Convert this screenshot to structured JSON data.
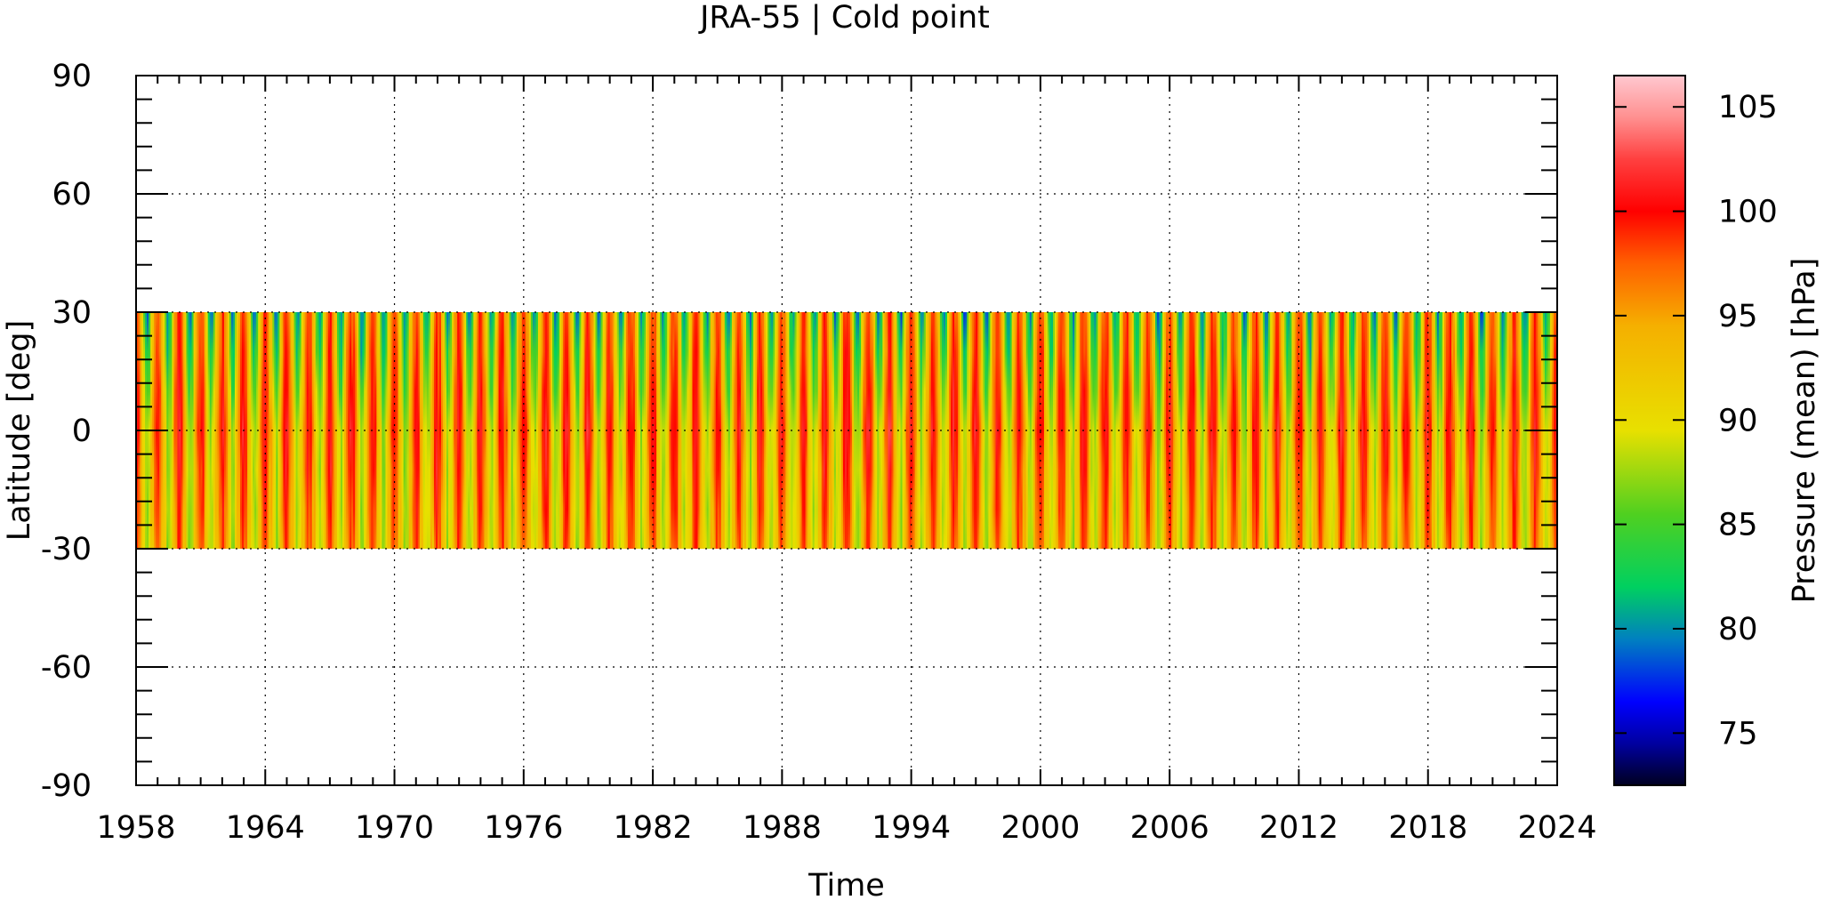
{
  "chart_data": {
    "type": "heatmap",
    "title": "JRA-55 | Cold point",
    "xlabel": "Time",
    "ylabel": "Latitude [deg]",
    "colorbar_label": "Pressure (mean) [hPa]",
    "xlim": [
      1958,
      2024
    ],
    "ylim": [
      -90,
      90
    ],
    "x_ticks": [
      1958,
      1964,
      1970,
      1976,
      1982,
      1988,
      1994,
      2000,
      2006,
      2012,
      2018,
      2024
    ],
    "y_ticks": [
      -90,
      -60,
      -30,
      0,
      30,
      60,
      90
    ],
    "data_lat_range": [
      -30,
      30
    ],
    "colorbar_range": [
      72.5,
      106.5
    ],
    "colorbar_ticks": [
      75,
      80,
      85,
      90,
      95,
      100,
      105
    ],
    "colormap": [
      {
        "v": 72.5,
        "c": "#000020"
      },
      {
        "v": 74.5,
        "c": "#0000a0"
      },
      {
        "v": 76.5,
        "c": "#0000ff"
      },
      {
        "v": 79.5,
        "c": "#0080c0"
      },
      {
        "v": 82.0,
        "c": "#00d060"
      },
      {
        "v": 85.5,
        "c": "#50d020"
      },
      {
        "v": 89.5,
        "c": "#e8e000"
      },
      {
        "v": 94.5,
        "c": "#f5b000"
      },
      {
        "v": 97.5,
        "c": "#ff6000"
      },
      {
        "v": 100.0,
        "c": "#ff0000"
      },
      {
        "v": 102.5,
        "c": "#ff4040"
      },
      {
        "v": 104.5,
        "c": "#ff9090"
      },
      {
        "v": 106.5,
        "c": "#ffc8d0"
      }
    ],
    "grid": true,
    "grid_style": "dotted",
    "pattern": "seasonal cycle: ~101 hPa maxima in boreal winter, ~88 hPa minima in summer; lowest values (~78-82 hPa) near 30N in summer"
  }
}
